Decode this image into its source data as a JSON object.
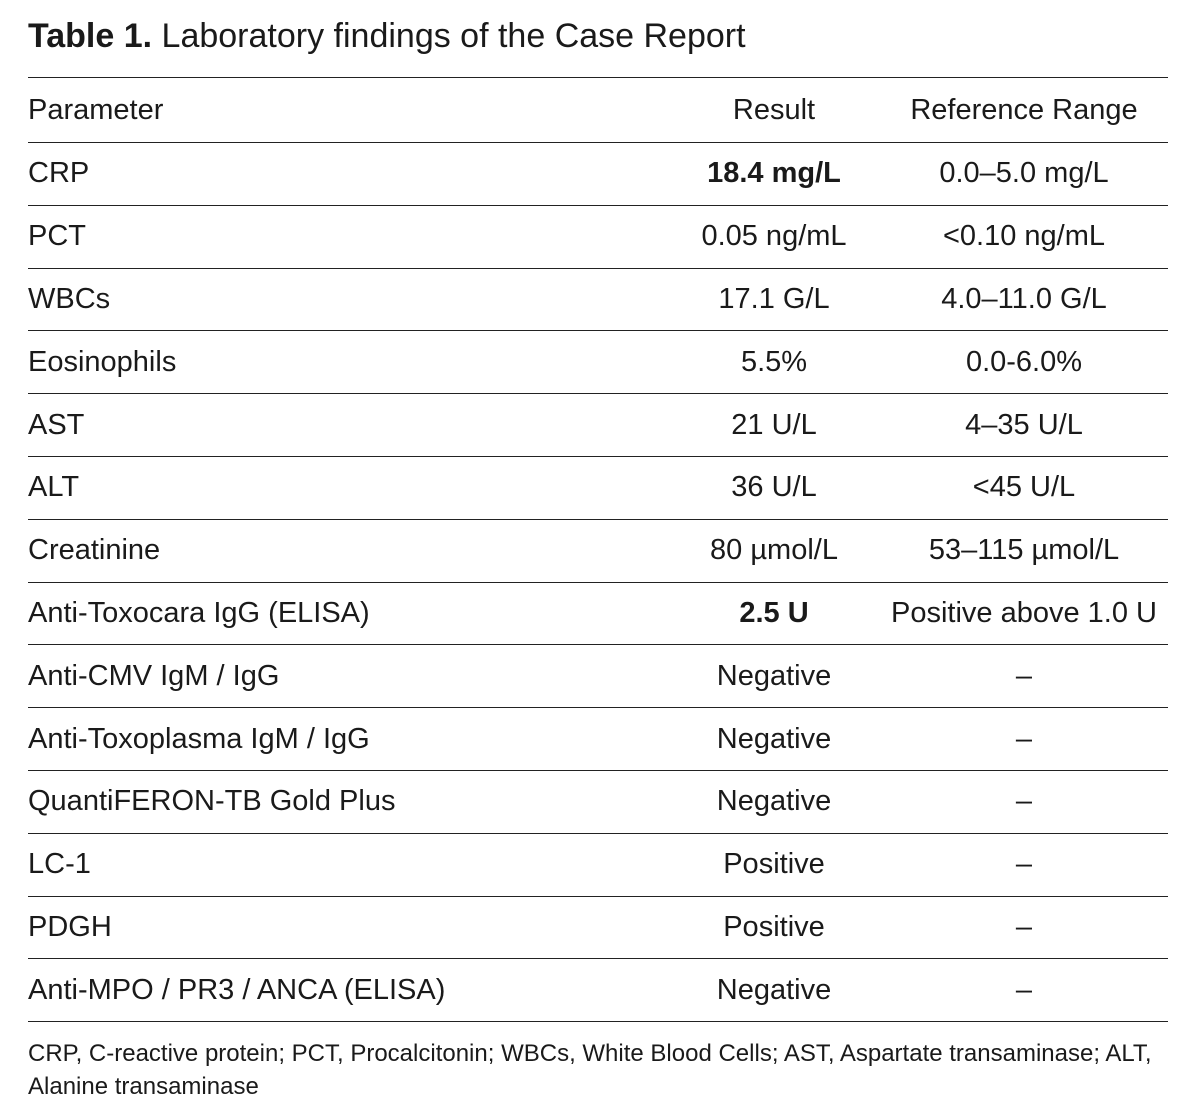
{
  "caption": {
    "label": "Table 1.",
    "title": "Laboratory findings of the Case Report"
  },
  "table": {
    "headers": {
      "parameter": "Parameter",
      "result": "Result",
      "reference": "Reference Range"
    },
    "rows": [
      {
        "parameter": "CRP",
        "result": "18.4 mg/L",
        "reference": "0.0–5.0 mg/L",
        "result_bold": true
      },
      {
        "parameter": "PCT",
        "result": "0.05 ng/mL",
        "reference": "<0.10 ng/mL",
        "result_bold": false
      },
      {
        "parameter": "WBCs",
        "result": "17.1 G/L",
        "reference": "4.0–11.0 G/L",
        "result_bold": false
      },
      {
        "parameter": "Eosinophils",
        "result": "5.5%",
        "reference": "0.0-6.0%",
        "result_bold": false
      },
      {
        "parameter": "AST",
        "result": "21 U/L",
        "reference": "4–35 U/L",
        "result_bold": false
      },
      {
        "parameter": "ALT",
        "result": "36 U/L",
        "reference": "<45 U/L",
        "result_bold": false
      },
      {
        "parameter": "Creatinine",
        "result": "80 µmol/L",
        "reference": "53–115 µmol/L",
        "result_bold": false
      },
      {
        "parameter": "Anti-Toxocara IgG (ELISA)",
        "result": "2.5 U",
        "reference": "Positive above 1.0 U",
        "result_bold": true
      },
      {
        "parameter": "Anti-CMV IgM / IgG",
        "result": "Negative",
        "reference": "–",
        "result_bold": false
      },
      {
        "parameter": "Anti-Toxoplasma IgM / IgG",
        "result": "Negative",
        "reference": "–",
        "result_bold": false
      },
      {
        "parameter": "QuantiFERON-TB Gold Plus",
        "result": "Negative",
        "reference": "–",
        "result_bold": false
      },
      {
        "parameter": "LC-1",
        "result": "Positive",
        "reference": "–",
        "result_bold": false
      },
      {
        "parameter": "PDGH",
        "result": "Positive",
        "reference": "–",
        "result_bold": false
      },
      {
        "parameter": "Anti-MPO / PR3 / ANCA (ELISA)",
        "result": "Negative",
        "reference": "–",
        "result_bold": false
      }
    ]
  },
  "footnote": "CRP, C-reactive protein; PCT, Procalcitonin; WBCs, White Blood Cells; AST, Aspartate transaminase; ALT, Alanine transaminase"
}
